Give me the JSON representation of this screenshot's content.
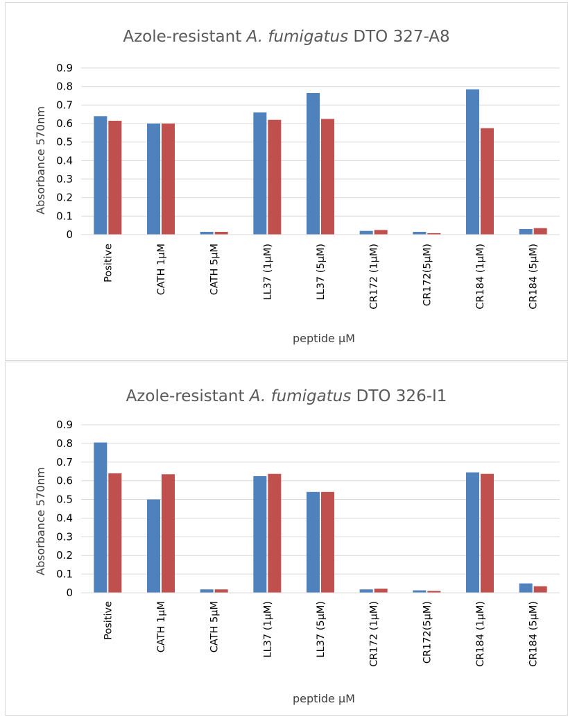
{
  "chart_data": [
    {
      "type": "bar",
      "title": "Azole-resistant A. fumigatus DTO 327-A8",
      "title_parts": {
        "prefix": "Azole-resistant ",
        "italic": "A. fumigatus",
        "suffix": " DTO 327-A8"
      },
      "xlabel": "peptide µM",
      "ylabel": "Absorbance 570nm",
      "ylim": [
        0,
        0.9
      ],
      "yticks": [
        "0",
        "0.1",
        "0.2",
        "0.3",
        "0.4",
        "0.5",
        "0.6",
        "0.7",
        "0.8",
        "0.9"
      ],
      "categories": [
        "Positive",
        "CATH 1µM",
        "CATH 5µM",
        "LL37 (1µM)",
        "LL37 (5µM)",
        "CR172 (1µM)",
        "CR172(5µM)",
        "CR184 (1µM)",
        "CR184 (5µM)"
      ],
      "series": [
        {
          "color": "#4f81bd",
          "values": [
            0.64,
            0.6,
            0.015,
            0.66,
            0.765,
            0.02,
            0.015,
            0.785,
            0.03
          ]
        },
        {
          "color": "#c0504d",
          "values": [
            0.615,
            0.6,
            0.015,
            0.62,
            0.625,
            0.025,
            0.008,
            0.575,
            0.035
          ]
        }
      ],
      "grid": true,
      "legend": "none"
    },
    {
      "type": "bar",
      "title": "Azole-resistant A. fumigatus DTO 326-I1",
      "title_parts": {
        "prefix": "Azole-resistant ",
        "italic": "A. fumigatus",
        "suffix": "  DTO 326-I1"
      },
      "xlabel": "peptide µM",
      "ylabel": "Absorbance 570nm",
      "ylim": [
        0,
        0.9
      ],
      "yticks": [
        "0",
        "0.1",
        "0.2",
        "0.3",
        "0.4",
        "0.5",
        "0.6",
        "0.7",
        "0.8",
        "0.9"
      ],
      "categories": [
        "Positive",
        "CATH 1µM",
        "CATH 5µM",
        "LL37 (1µM)",
        "LL37 (5µM)",
        "CR172 (1µM)",
        "CR172(5µM)",
        "CR184 (1µM)",
        "CR184 (5µM)"
      ],
      "series": [
        {
          "color": "#4f81bd",
          "values": [
            0.805,
            0.5,
            0.018,
            0.625,
            0.54,
            0.018,
            0.013,
            0.645,
            0.05
          ]
        },
        {
          "color": "#c0504d",
          "values": [
            0.64,
            0.635,
            0.018,
            0.637,
            0.54,
            0.022,
            0.01,
            0.637,
            0.035
          ]
        }
      ],
      "grid": true,
      "legend": "none"
    }
  ]
}
